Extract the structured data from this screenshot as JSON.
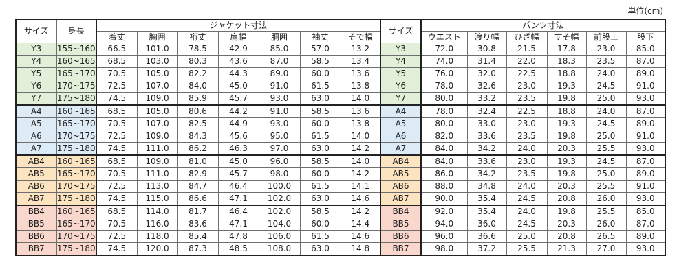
{
  "unit_label": "単位(cm)",
  "headers": {
    "size": "サイズ",
    "height": "身長",
    "jacket_group": "ジャケット寸法",
    "pants_group": "パンツ寸法",
    "jacket_cols": [
      "着丈",
      "胸囲",
      "裄丈",
      "肩幅",
      "胴囲",
      "袖丈",
      "そで幅"
    ],
    "pants_cols": [
      "ウエスト",
      "渡り幅",
      "ひざ幅",
      "すそ幅",
      "前股上",
      "股下"
    ]
  },
  "colors": {
    "Y": "#e2efd9",
    "A": "#ddebf7",
    "AB": "#fce4c0",
    "BB": "#f9d7cc"
  },
  "rows": [
    {
      "size": "Y3",
      "group": "Y",
      "height": "155~160",
      "jacket": [
        "66.5",
        "101.0",
        "78.5",
        "42.9",
        "85.0",
        "57.0",
        "13.2"
      ],
      "pants": [
        "72.0",
        "30.8",
        "21.5",
        "17.8",
        "23.0",
        "85.0"
      ]
    },
    {
      "size": "Y4",
      "group": "Y",
      "height": "160~165",
      "jacket": [
        "68.5",
        "103.0",
        "80.3",
        "43.6",
        "87.0",
        "58.5",
        "13.4"
      ],
      "pants": [
        "74.0",
        "31.4",
        "22.0",
        "18.3",
        "23.5",
        "87.0"
      ]
    },
    {
      "size": "Y5",
      "group": "Y",
      "height": "165~170",
      "jacket": [
        "70.5",
        "105.0",
        "82.2",
        "44.3",
        "89.0",
        "60.0",
        "13.6"
      ],
      "pants": [
        "76.0",
        "32.0",
        "22.5",
        "18.8",
        "24.0",
        "89.0"
      ]
    },
    {
      "size": "Y6",
      "group": "Y",
      "height": "170~175",
      "jacket": [
        "72.5",
        "107.0",
        "84.0",
        "45.0",
        "91.0",
        "61.5",
        "13.8"
      ],
      "pants": [
        "78.0",
        "32.6",
        "23.0",
        "19.3",
        "24.5",
        "91.0"
      ]
    },
    {
      "size": "Y7",
      "group": "Y",
      "height": "175~180",
      "jacket": [
        "74.5",
        "109.0",
        "85.9",
        "45.7",
        "93.0",
        "63.0",
        "14.0"
      ],
      "pants": [
        "80.0",
        "33.2",
        "23.5",
        "19.8",
        "25.0",
        "93.0"
      ]
    },
    {
      "size": "A4",
      "group": "A",
      "height": "160~165",
      "jacket": [
        "68.5",
        "105.0",
        "80.6",
        "44.2",
        "91.0",
        "58.5",
        "13.6"
      ],
      "pants": [
        "78.0",
        "32.4",
        "22.5",
        "18.8",
        "24.0",
        "87.0"
      ]
    },
    {
      "size": "A5",
      "group": "A",
      "height": "165~170",
      "jacket": [
        "70.5",
        "107.0",
        "82.5",
        "44.9",
        "93.0",
        "60.0",
        "13.8"
      ],
      "pants": [
        "80.0",
        "33.0",
        "23.0",
        "19.3",
        "24.5",
        "89.0"
      ]
    },
    {
      "size": "A6",
      "group": "A",
      "height": "170~175",
      "jacket": [
        "72.5",
        "109.0",
        "84.3",
        "45.6",
        "95.0",
        "61.5",
        "14.0"
      ],
      "pants": [
        "82.0",
        "33.6",
        "23.5",
        "19.8",
        "25.0",
        "91.0"
      ]
    },
    {
      "size": "A7",
      "group": "A",
      "height": "175~180",
      "jacket": [
        "74.5",
        "111.0",
        "86.2",
        "46.3",
        "97.0",
        "63.0",
        "14.2"
      ],
      "pants": [
        "84.0",
        "34.2",
        "24.0",
        "20.3",
        "25.5",
        "93.0"
      ]
    },
    {
      "size": "AB4",
      "group": "AB",
      "height": "160~165",
      "jacket": [
        "68.5",
        "109.0",
        "81.0",
        "45.0",
        "96.0",
        "58.5",
        "14.0"
      ],
      "pants": [
        "84.0",
        "33.6",
        "23.0",
        "19.3",
        "24.5",
        "87.0"
      ]
    },
    {
      "size": "AB5",
      "group": "AB",
      "height": "165~170",
      "jacket": [
        "70.5",
        "111.0",
        "82.9",
        "45.7",
        "98.0",
        "60.0",
        "14.2"
      ],
      "pants": [
        "86.0",
        "34.2",
        "23.5",
        "19.8",
        "25.0",
        "89.0"
      ]
    },
    {
      "size": "AB6",
      "group": "AB",
      "height": "170~175",
      "jacket": [
        "72.5",
        "113.0",
        "84.7",
        "46.4",
        "100.0",
        "61.5",
        "14.1"
      ],
      "pants": [
        "88.0",
        "34.8",
        "24.0",
        "20.3",
        "25.5",
        "91.0"
      ]
    },
    {
      "size": "AB7",
      "group": "AB",
      "height": "175~180",
      "jacket": [
        "74.5",
        "115.0",
        "86.6",
        "47.1",
        "102.0",
        "63.0",
        "14.6"
      ],
      "pants": [
        "90.0",
        "35.4",
        "24.5",
        "20.8",
        "26.0",
        "93.0"
      ]
    },
    {
      "size": "BB4",
      "group": "BB",
      "height": "160~165",
      "jacket": [
        "68.5",
        "114.0",
        "81.7",
        "46.4",
        "102.0",
        "58.5",
        "14.2"
      ],
      "pants": [
        "92.0",
        "35.4",
        "24.0",
        "19.8",
        "25.5",
        "85.0"
      ]
    },
    {
      "size": "BB5",
      "group": "BB",
      "height": "165~170",
      "jacket": [
        "70.5",
        "116.0",
        "83.6",
        "47.1",
        "104.0",
        "60.0",
        "14.4"
      ],
      "pants": [
        "94.0",
        "36.0",
        "24.5",
        "20.3",
        "26.0",
        "87.0"
      ]
    },
    {
      "size": "BB6",
      "group": "BB",
      "height": "170~175",
      "jacket": [
        "72.5",
        "118.0",
        "85.4",
        "47.8",
        "106.0",
        "61.5",
        "14.6"
      ],
      "pants": [
        "96.0",
        "36.6",
        "25.0",
        "20.8",
        "26.5",
        "89.0"
      ]
    },
    {
      "size": "BB7",
      "group": "BB",
      "height": "175~180",
      "jacket": [
        "74.5",
        "120.0",
        "87.3",
        "48.5",
        "108.0",
        "63.0",
        "14.8"
      ],
      "pants": [
        "98.0",
        "37.2",
        "25.5",
        "21.3",
        "27.0",
        "93.0"
      ]
    }
  ]
}
